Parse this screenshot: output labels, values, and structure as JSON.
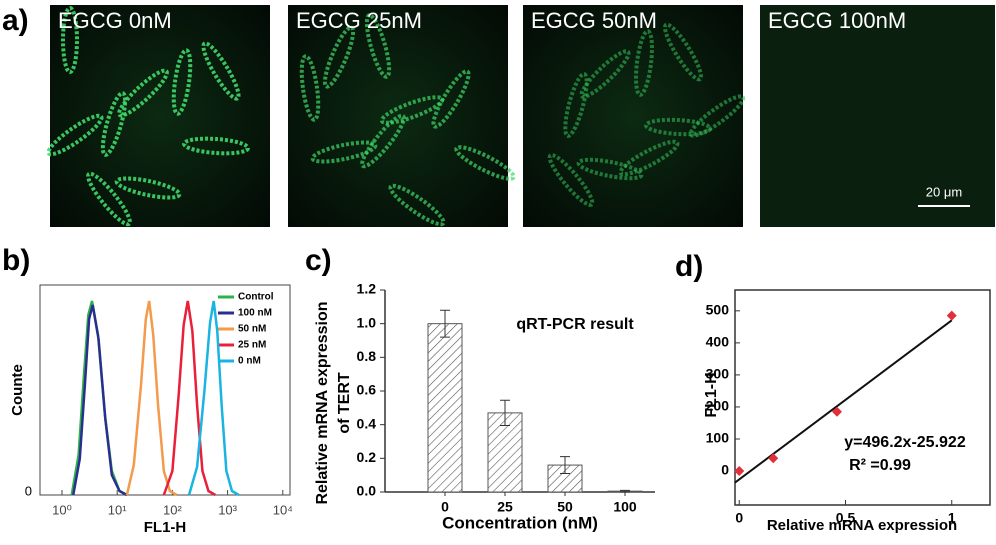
{
  "panel_a": {
    "label": "a)",
    "images": [
      {
        "label": "EGCG 0nM"
      },
      {
        "label": "EGCG 25nM"
      },
      {
        "label": "EGCG 50nM"
      },
      {
        "label": "EGCG 100nM"
      }
    ],
    "scale_bar": "20 μm"
  },
  "chart_data": [
    {
      "type": "line",
      "panel_label": "b)",
      "ylabel": "Counte",
      "xlabel": "FL1-H",
      "xlog": true,
      "xlim": [
        0.4,
        13500
      ],
      "ylim": [
        0,
        105
      ],
      "xticks": [
        {
          "value": 1,
          "label": "10⁰"
        },
        {
          "value": 10,
          "label": "10¹"
        },
        {
          "value": 100,
          "label": "10²"
        },
        {
          "value": 1000,
          "label": "10³"
        },
        {
          "value": 10000,
          "label": "10⁴"
        }
      ],
      "yticks": [
        0
      ],
      "series": [
        {
          "name": "Control",
          "color": "#2db34a",
          "x": [
            1.5,
            2,
            2.5,
            3,
            3.5,
            4.5,
            6,
            8,
            11,
            15
          ],
          "values": [
            0,
            20,
            60,
            90,
            97,
            80,
            40,
            12,
            2,
            0
          ]
        },
        {
          "name": "100 nM",
          "color": "#2a2f8f",
          "x": [
            1.6,
            2.1,
            2.6,
            3.1,
            3.6,
            4.6,
            6.1,
            8,
            11,
            15
          ],
          "values": [
            0,
            18,
            55,
            88,
            95,
            78,
            38,
            10,
            2,
            0
          ]
        },
        {
          "name": "50 nM",
          "color": "#f39a4b",
          "x": [
            15,
            20,
            27,
            33,
            38,
            45,
            55,
            70,
            90,
            120
          ],
          "values": [
            0,
            15,
            55,
            88,
            97,
            80,
            45,
            12,
            2,
            0
          ]
        },
        {
          "name": "25 nM",
          "color": "#e8203a",
          "x": [
            70,
            100,
            130,
            160,
            190,
            230,
            280,
            350,
            450,
            600
          ],
          "values": [
            0,
            12,
            50,
            85,
            97,
            82,
            45,
            12,
            2,
            0
          ]
        },
        {
          "name": "0 nM",
          "color": "#1ab4e0",
          "x": [
            200,
            280,
            380,
            480,
            560,
            650,
            780,
            950,
            1200,
            1600
          ],
          "values": [
            0,
            14,
            52,
            86,
            97,
            82,
            45,
            12,
            2,
            0
          ]
        }
      ],
      "legend": "upper right"
    },
    {
      "type": "bar",
      "panel_label": "c)",
      "ylabel": [
        "Relative mRNA expression",
        "of TERT"
      ],
      "xlabel": "Concentration (nM)",
      "annotation": "qRT-PCR result",
      "categories": [
        "0",
        "25",
        "50",
        "100"
      ],
      "values": [
        1.0,
        0.47,
        0.16,
        0.005
      ],
      "errors": [
        0.08,
        0.075,
        0.05,
        0.005
      ],
      "ylim": [
        0,
        1.2
      ],
      "yticks": [
        {
          "value": 0,
          "label": "0.0"
        },
        0.2,
        0.4,
        0.6,
        0.8,
        {
          "value": 1,
          "label": "1.0"
        },
        1.2
      ]
    },
    {
      "type": "scatter",
      "panel_label": "d)",
      "ylabel": "FL1-H",
      "xlabel": "Relative mRNA expression",
      "color": "#e0303a",
      "x": [
        0,
        0.16,
        0.46,
        1
      ],
      "values": [
        0,
        40,
        185,
        485
      ],
      "fit": {
        "slope": 496.2,
        "intercept": -25.922,
        "label": "y=496.2x-25.922",
        "r2_label": "R² =0.99"
      },
      "xlim": [
        -0.02,
        1.18
      ],
      "ylim": [
        -106,
        565
      ],
      "xticks": [
        0,
        0.5,
        1
      ],
      "yticks": [
        0,
        100,
        200,
        300,
        400,
        500
      ]
    }
  ]
}
